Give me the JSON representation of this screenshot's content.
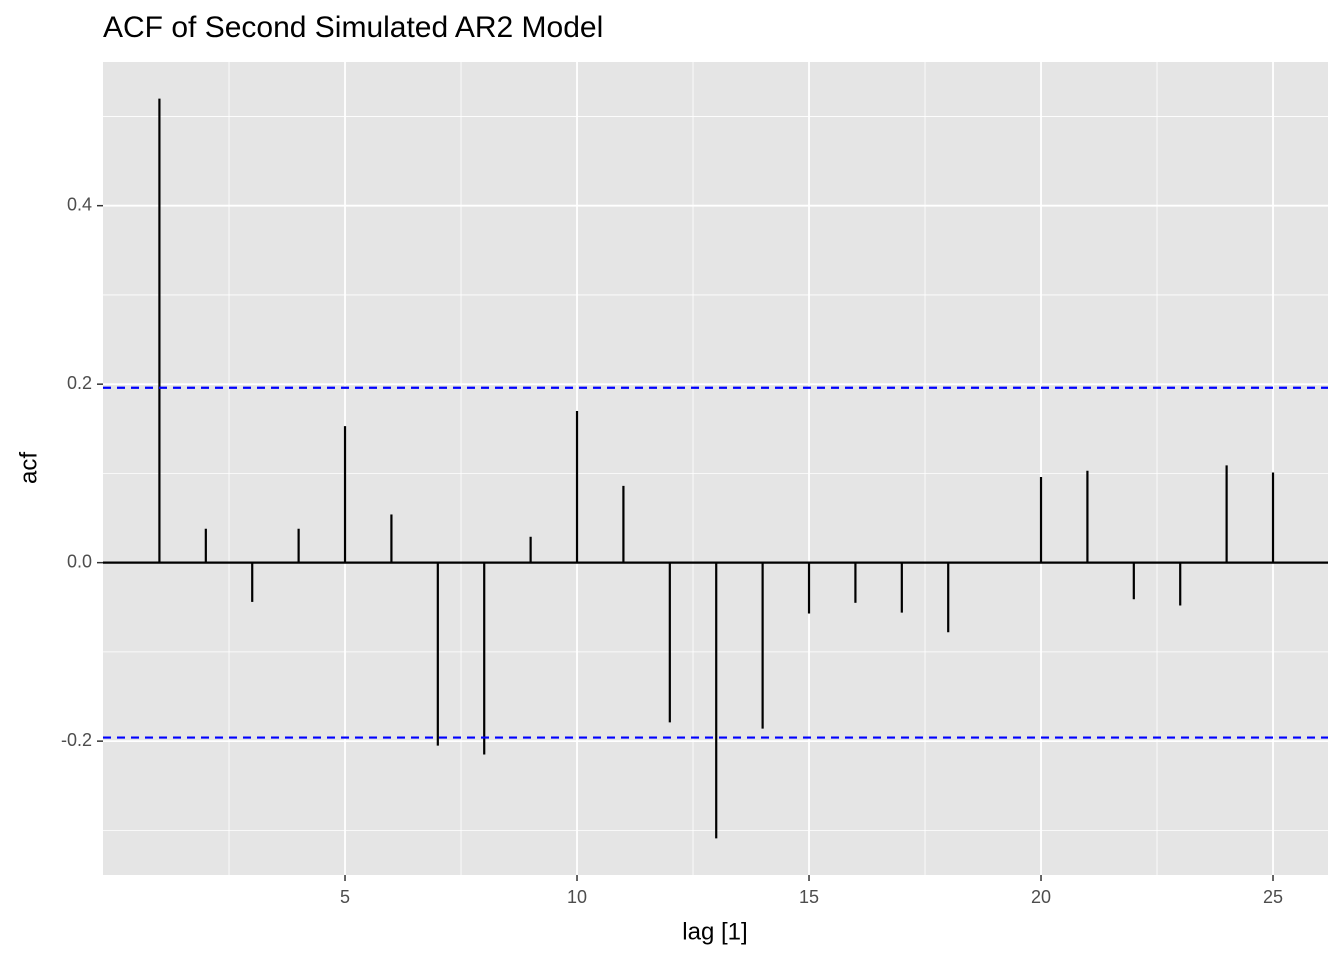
{
  "chart_data": {
    "type": "stem",
    "title": "ACF of Second Simulated AR2 Model",
    "x_label": "lag [1]",
    "y_label": "acf",
    "x": [
      1,
      2,
      3,
      4,
      5,
      6,
      7,
      8,
      9,
      10,
      11,
      12,
      13,
      14,
      15,
      16,
      17,
      18,
      19,
      20,
      21,
      22,
      23,
      24,
      25
    ],
    "values": [
      0.52,
      0.038,
      -0.044,
      0.038,
      0.153,
      0.054,
      -0.205,
      -0.215,
      0.029,
      0.17,
      0.086,
      -0.179,
      -0.309,
      -0.186,
      -0.057,
      -0.045,
      -0.056,
      -0.078,
      0.0,
      0.096,
      0.103,
      -0.041,
      -0.048,
      0.109,
      0.101
    ],
    "color": "#000000",
    "confidence_bounds": [
      0.196,
      -0.196
    ],
    "bound_color": "#0000ff",
    "xlim": [
      -0.216,
      26.185
    ],
    "ylim": [
      -0.35,
      0.561
    ],
    "xticks": [
      5,
      10,
      15,
      20,
      25
    ],
    "yticks": [
      -0.2,
      {
        "value": 0,
        "label": "0.0"
      },
      0.2,
      0.4
    ],
    "grid": true
  }
}
